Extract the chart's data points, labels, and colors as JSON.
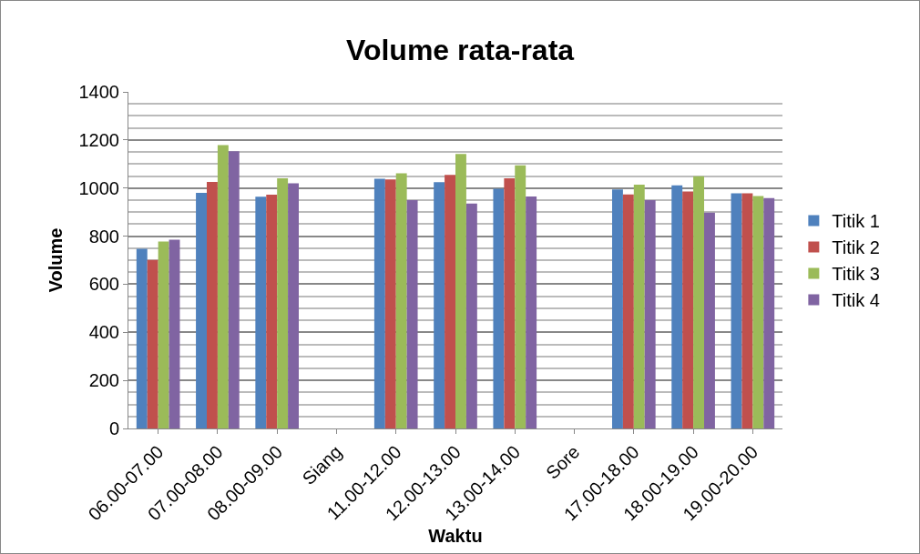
{
  "chart_data": {
    "type": "bar",
    "title": "Volume rata-rata",
    "xlabel": "Waktu",
    "ylabel": "Volume",
    "categories": [
      "06.00-07.00",
      "07.00-08.00",
      "08.00-09.00",
      "Siang",
      "11.00-12.00",
      "12.00-13.00",
      "13.00-14.00",
      "Sore",
      "17.00-18.00",
      "18.00-19.00",
      "19.00-20.00"
    ],
    "series": [
      {
        "name": "Titik 1",
        "color": "#4f81bd",
        "values": [
          747,
          980,
          964,
          null,
          1039,
          1024,
          997,
          null,
          994,
          1011,
          978
        ]
      },
      {
        "name": "Titik 2",
        "color": "#c0504d",
        "values": [
          701,
          1025,
          972,
          null,
          1036,
          1055,
          1041,
          null,
          973,
          986,
          978
        ]
      },
      {
        "name": "Titik 3",
        "color": "#9bbb59",
        "values": [
          778,
          1179,
          1041,
          null,
          1061,
          1142,
          1094,
          null,
          1014,
          1049,
          967
        ]
      },
      {
        "name": "Titik 4",
        "color": "#8064a2",
        "values": [
          785,
          1153,
          1020,
          null,
          950,
          936,
          965,
          null,
          950,
          898,
          958
        ]
      }
    ],
    "ylim": [
      0,
      1400
    ],
    "yticks": [
      0,
      200,
      400,
      600,
      800,
      1000,
      1200,
      1400
    ],
    "grid": "y",
    "legend": "right"
  }
}
